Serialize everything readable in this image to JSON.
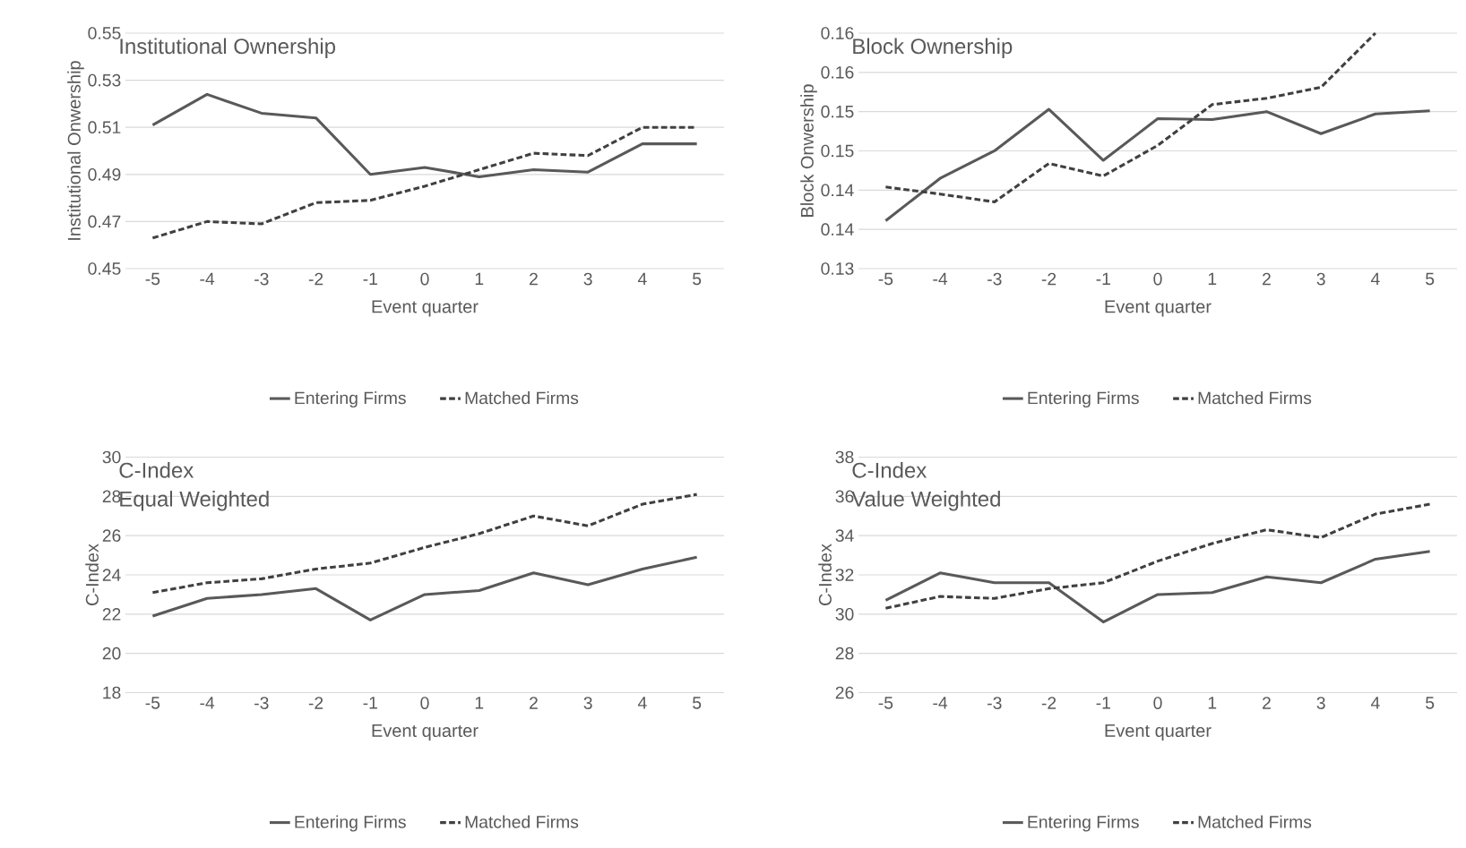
{
  "chart_data": [
    {
      "type": "line",
      "title": "Institutional Ownership",
      "xlabel": "Event quarter",
      "ylabel": "Institutional Onwership",
      "categories": [
        "-5",
        "-4",
        "-3",
        "-2",
        "-1",
        "0",
        "1",
        "2",
        "3",
        "4",
        "5"
      ],
      "ylim": [
        0.45,
        0.55
      ],
      "yticks": [
        0.45,
        0.47,
        0.49,
        0.51,
        0.53,
        0.55
      ],
      "grid": "y",
      "legend": "bottom",
      "series": [
        {
          "name": "Entering Firms",
          "color": "#595959",
          "line_style": "solid",
          "values": [
            0.511,
            0.524,
            0.516,
            0.514,
            0.49,
            0.493,
            0.489,
            0.492,
            0.491,
            0.503,
            0.503
          ]
        },
        {
          "name": "Matched Firms",
          "color": "#404040",
          "line_style": "dashed",
          "values": [
            0.463,
            0.47,
            0.469,
            0.478,
            0.479,
            0.485,
            0.492,
            0.499,
            0.498,
            0.51,
            0.51
          ]
        }
      ]
    },
    {
      "type": "line",
      "title": "Block Ownership",
      "xlabel": "Event quarter",
      "ylabel": "Block Onwership",
      "categories": [
        "-5",
        "-4",
        "-3",
        "-2",
        "-1",
        "0",
        "1",
        "2",
        "3",
        "4",
        "5"
      ],
      "ylim": [
        0.13,
        0.16
      ],
      "yticks": [
        0.13,
        {
          "value": 0.135,
          "label": "0.14"
        },
        0.14,
        {
          "value": 0.145,
          "label": "0.15"
        },
        0.15,
        {
          "value": 0.155,
          "label": "0.16"
        },
        0.16
      ],
      "grid": "y",
      "legend": "bottom",
      "series": [
        {
          "name": "Entering Firms",
          "color": "#595959",
          "line_style": "solid",
          "values": [
            0.1361,
            0.1415,
            0.145,
            0.1503,
            0.1438,
            0.1491,
            0.149,
            0.15,
            0.1472,
            0.1497,
            0.1501
          ]
        },
        {
          "name": "Matched Firms",
          "color": "#404040",
          "line_style": "dashed",
          "values": [
            0.1404,
            0.1395,
            0.1385,
            0.1434,
            0.1418,
            0.1457,
            0.1509,
            0.1517,
            0.1531,
            0.16,
            null
          ]
        }
      ]
    },
    {
      "type": "line",
      "title": "C-Index",
      "subtitle": "Equal Weighted",
      "xlabel": "Event quarter",
      "ylabel": "C-Index",
      "categories": [
        "-5",
        "-4",
        "-3",
        "-2",
        "-1",
        "0",
        "1",
        "2",
        "3",
        "4",
        "5"
      ],
      "ylim": [
        18,
        30
      ],
      "yticks": [
        18,
        20,
        22,
        24,
        26,
        28,
        30
      ],
      "grid": "y",
      "legend": "bottom",
      "series": [
        {
          "name": "Entering Firms",
          "color": "#595959",
          "line_style": "solid",
          "values": [
            21.9,
            22.8,
            23.0,
            23.3,
            21.7,
            23.0,
            23.2,
            24.1,
            23.5,
            24.3,
            24.9
          ]
        },
        {
          "name": "Matched Firms",
          "color": "#404040",
          "line_style": "dashed",
          "values": [
            23.1,
            23.6,
            23.8,
            24.3,
            24.6,
            25.4,
            26.1,
            27.0,
            26.5,
            27.6,
            28.1
          ]
        }
      ]
    },
    {
      "type": "line",
      "title": "C-Index",
      "subtitle": "Value Weighted",
      "xlabel": "Event quarter",
      "ylabel": "C-Index",
      "categories": [
        "-5",
        "-4",
        "-3",
        "-2",
        "-1",
        "0",
        "1",
        "2",
        "3",
        "4",
        "5"
      ],
      "ylim": [
        26,
        38
      ],
      "yticks": [
        26,
        28,
        30,
        32,
        34,
        36,
        38
      ],
      "grid": "y",
      "legend": "bottom",
      "series": [
        {
          "name": "Entering Firms",
          "color": "#595959",
          "line_style": "solid",
          "values": [
            30.7,
            32.1,
            31.6,
            31.6,
            29.6,
            31.0,
            31.1,
            31.9,
            31.6,
            32.8,
            33.2
          ]
        },
        {
          "name": "Matched Firms",
          "color": "#404040",
          "line_style": "dashed",
          "values": [
            30.3,
            30.9,
            30.8,
            31.3,
            31.6,
            32.7,
            33.6,
            34.3,
            33.9,
            35.1,
            35.6
          ]
        }
      ]
    }
  ]
}
